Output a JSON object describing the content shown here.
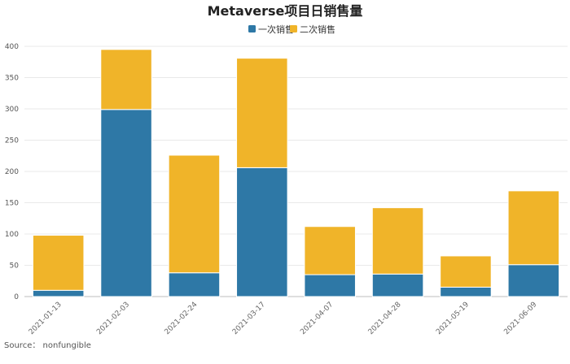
{
  "chart_data": {
    "type": "bar",
    "stacked": true,
    "title": "Metaverse项目日销售量",
    "categories": [
      "2021-01-13",
      "2021-02-03",
      "2021-02-24",
      "2021-03-17",
      "2021-04-07",
      "2021-04-28",
      "2021-05-19",
      "2021-06-09"
    ],
    "series": [
      {
        "name": "一次销售",
        "color": "#2e78a6",
        "values": [
          10,
          299,
          38,
          206,
          35,
          36,
          15,
          51
        ]
      },
      {
        "name": "二次销售",
        "color": "#f0b429",
        "values": [
          88,
          96,
          188,
          175,
          77,
          106,
          50,
          118
        ]
      }
    ],
    "ylim": [
      0,
      400
    ],
    "yticks": [
      0,
      50,
      100,
      150,
      200,
      250,
      300,
      350,
      400
    ],
    "grid": true,
    "legend_position": "top-center",
    "source": "Source： nonfungible"
  }
}
